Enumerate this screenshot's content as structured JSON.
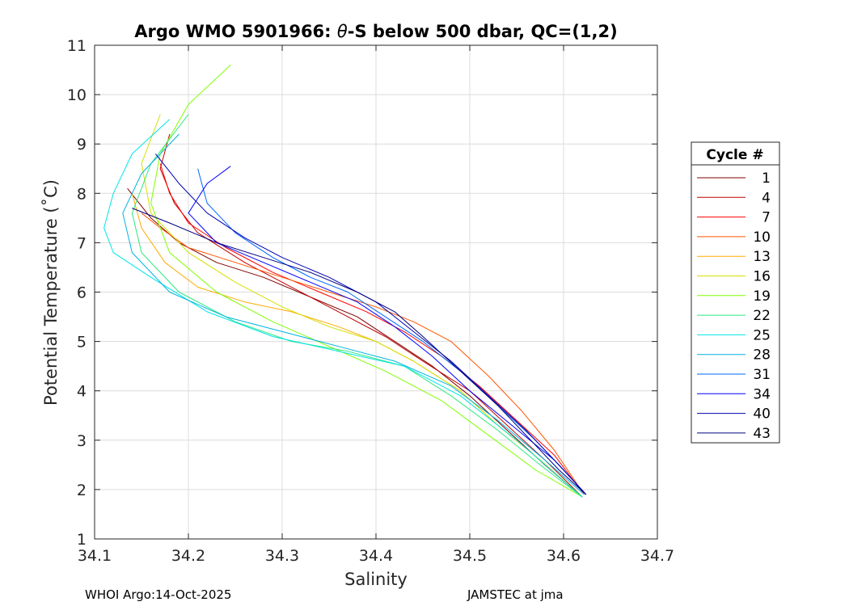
{
  "chart_data": {
    "type": "line",
    "title": "Argo WMO 5901966: θ-S below 500 dbar,  QC=(1,2)",
    "title_parts": {
      "prefix": "Argo WMO 5901966: ",
      "symbol": "θ",
      "suffix": "-S below 500 dbar,  QC=(1,2)"
    },
    "xlabel": "Salinity",
    "ylabel": "Potential Temperature (˚C)",
    "xlim": [
      34.1,
      34.7
    ],
    "ylim": [
      1,
      11
    ],
    "xticks": [
      "34.1",
      "34.2",
      "34.3",
      "34.4",
      "34.5",
      "34.6",
      "34.7"
    ],
    "yticks": [
      "1",
      "2",
      "3",
      "4",
      "5",
      "6",
      "7",
      "8",
      "9",
      "10",
      "11"
    ],
    "grid": true,
    "legend": {
      "title": "Cycle #",
      "placement": "right",
      "entries": [
        {
          "label": "1",
          "color": "#800000"
        },
        {
          "label": "4",
          "color": "#c00000"
        },
        {
          "label": "7",
          "color": "#ff0000"
        },
        {
          "label": "10",
          "color": "#ff5500"
        },
        {
          "label": "13",
          "color": "#ffaa00"
        },
        {
          "label": "16",
          "color": "#d4e000"
        },
        {
          "label": "19",
          "color": "#7fff00"
        },
        {
          "label": "22",
          "color": "#2ee880"
        },
        {
          "label": "25",
          "color": "#00e5e5"
        },
        {
          "label": "28",
          "color": "#00b4e0"
        },
        {
          "label": "31",
          "color": "#0066ff"
        },
        {
          "label": "34",
          "color": "#0000ff"
        },
        {
          "label": "40",
          "color": "#0000b0"
        },
        {
          "label": "43",
          "color": "#000080"
        }
      ]
    },
    "series": [
      {
        "name": "1",
        "color": "#800000",
        "x": [
          34.135,
          34.16,
          34.19,
          34.23,
          34.28,
          34.33,
          34.38,
          34.42,
          34.46,
          34.5,
          34.54,
          34.58,
          34.62
        ],
        "y": [
          8.1,
          7.5,
          7.0,
          6.6,
          6.3,
          5.9,
          5.5,
          5.0,
          4.5,
          3.9,
          3.2,
          2.5,
          1.85
        ]
      },
      {
        "name": "4",
        "color": "#c00000",
        "x": [
          34.18,
          34.17,
          34.185,
          34.21,
          34.26,
          34.31,
          34.36,
          34.41,
          34.45,
          34.5,
          34.54,
          34.58,
          34.62
        ],
        "y": [
          9.2,
          8.5,
          7.8,
          7.2,
          6.6,
          6.1,
          5.6,
          5.1,
          4.6,
          4.0,
          3.3,
          2.6,
          1.85
        ]
      },
      {
        "name": "7",
        "color": "#ff0000",
        "x": [
          34.17,
          34.18,
          34.2,
          34.24,
          34.29,
          34.34,
          34.39,
          34.43,
          34.47,
          34.51,
          34.55,
          34.59,
          34.622
        ],
        "y": [
          8.6,
          8.0,
          7.4,
          6.9,
          6.4,
          6.0,
          5.6,
          5.2,
          4.7,
          4.1,
          3.4,
          2.7,
          1.9
        ]
      },
      {
        "name": "10",
        "color": "#ff5500",
        "x": [
          34.15,
          34.17,
          34.2,
          34.25,
          34.3,
          34.35,
          34.4,
          34.44,
          34.48,
          34.52,
          34.555,
          34.59,
          34.622
        ],
        "y": [
          7.6,
          7.3,
          6.9,
          6.6,
          6.3,
          6.0,
          5.7,
          5.4,
          5.0,
          4.3,
          3.6,
          2.8,
          1.9
        ]
      },
      {
        "name": "13",
        "color": "#ffaa00",
        "x": [
          34.14,
          34.15,
          34.175,
          34.21,
          34.26,
          34.31,
          34.36,
          34.4,
          34.44,
          34.49,
          34.53,
          34.575,
          34.62
        ],
        "y": [
          8.0,
          7.3,
          6.6,
          6.1,
          5.8,
          5.6,
          5.3,
          5.0,
          4.6,
          4.0,
          3.3,
          2.6,
          1.85
        ]
      },
      {
        "name": "16",
        "color": "#d4e000",
        "x": [
          34.17,
          34.15,
          34.16,
          34.2,
          34.25,
          34.3,
          34.35,
          34.4,
          34.44,
          34.49,
          34.53,
          34.575,
          34.62
        ],
        "y": [
          9.6,
          8.6,
          7.6,
          6.8,
          6.2,
          5.7,
          5.3,
          5.0,
          4.6,
          4.0,
          3.3,
          2.6,
          1.85
        ]
      },
      {
        "name": "19",
        "color": "#7fff00",
        "x": [
          34.245,
          34.2,
          34.17,
          34.16,
          34.18,
          34.23,
          34.29,
          34.35,
          34.41,
          34.47,
          34.52,
          34.57,
          34.62
        ],
        "y": [
          10.6,
          9.8,
          8.8,
          7.8,
          6.8,
          6.0,
          5.4,
          4.9,
          4.4,
          3.8,
          3.1,
          2.4,
          1.85
        ]
      },
      {
        "name": "22",
        "color": "#2ee880",
        "x": [
          34.2,
          34.16,
          34.14,
          34.15,
          34.19,
          34.25,
          34.31,
          34.37,
          34.43,
          34.48,
          34.53,
          34.575,
          34.62
        ],
        "y": [
          9.6,
          8.6,
          7.6,
          6.8,
          6.0,
          5.4,
          5.0,
          4.8,
          4.5,
          3.9,
          3.2,
          2.5,
          1.85
        ]
      },
      {
        "name": "25",
        "color": "#00e5e5",
        "x": [
          34.18,
          34.14,
          34.12,
          34.11,
          34.12,
          34.16,
          34.22,
          34.29,
          34.36,
          34.43,
          34.49,
          34.55,
          34.62
        ],
        "y": [
          9.5,
          8.8,
          8.0,
          7.3,
          6.8,
          6.3,
          5.6,
          5.1,
          4.8,
          4.5,
          3.9,
          3.0,
          1.85
        ]
      },
      {
        "name": "28",
        "color": "#00b4e0",
        "x": [
          34.19,
          34.15,
          34.13,
          34.14,
          34.18,
          34.24,
          34.3,
          34.36,
          34.42,
          34.48,
          34.53,
          34.58,
          34.622
        ],
        "y": [
          9.2,
          8.4,
          7.6,
          6.8,
          6.0,
          5.5,
          5.2,
          4.9,
          4.6,
          4.1,
          3.4,
          2.6,
          1.9
        ]
      },
      {
        "name": "31",
        "color": "#0066ff",
        "x": [
          34.21,
          34.22,
          34.25,
          34.29,
          34.33,
          34.37,
          34.41,
          34.45,
          34.49,
          34.53,
          34.57,
          34.6,
          34.624
        ],
        "y": [
          8.5,
          7.8,
          7.2,
          6.7,
          6.3,
          6.0,
          5.5,
          5.0,
          4.4,
          3.7,
          3.0,
          2.4,
          1.9
        ]
      },
      {
        "name": "34",
        "color": "#0000ff",
        "x": [
          34.245,
          34.22,
          34.2,
          34.23,
          34.28,
          34.33,
          34.38,
          34.42,
          34.46,
          34.5,
          34.545,
          34.59,
          34.624
        ],
        "y": [
          8.55,
          8.2,
          7.6,
          7.0,
          6.6,
          6.2,
          5.8,
          5.3,
          4.7,
          4.0,
          3.3,
          2.6,
          1.9
        ]
      },
      {
        "name": "40",
        "color": "#0000b0",
        "x": [
          34.165,
          34.19,
          34.22,
          34.26,
          34.3,
          34.35,
          34.4,
          34.44,
          34.48,
          34.52,
          34.56,
          34.595,
          34.624
        ],
        "y": [
          8.8,
          8.2,
          7.6,
          7.1,
          6.7,
          6.3,
          5.8,
          5.2,
          4.6,
          3.9,
          3.2,
          2.5,
          1.9
        ]
      },
      {
        "name": "43",
        "color": "#000080",
        "x": [
          34.14,
          34.18,
          34.23,
          34.28,
          34.33,
          34.38,
          34.42,
          34.45,
          34.49,
          34.53,
          34.565,
          34.595,
          34.624
        ],
        "y": [
          7.7,
          7.4,
          7.0,
          6.7,
          6.4,
          6.0,
          5.6,
          5.1,
          4.4,
          3.7,
          3.0,
          2.4,
          1.9
        ]
      }
    ]
  },
  "footer": {
    "left": "WHOI Argo:14-Oct-2025",
    "right": "JAMSTEC at jma"
  }
}
